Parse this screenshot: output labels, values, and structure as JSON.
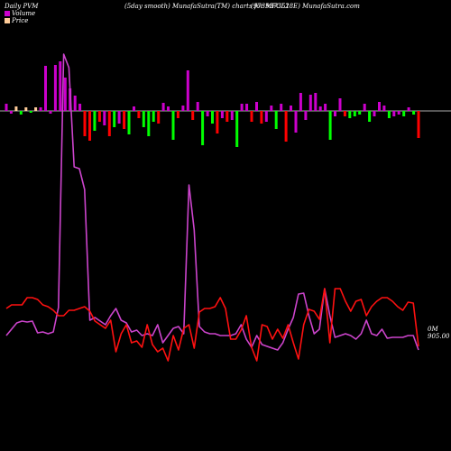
{
  "header": {
    "left": "Daily PVM",
    "middle": "(5day smooth) MunafaSutra(TM) charts for 937351",
    "right": "(973MFCL28E) MunafaSutra.com"
  },
  "legend": {
    "volume": "Volume",
    "price": "Price"
  },
  "end_labels": {
    "volume_label": "0M",
    "price_label": "905.00"
  },
  "colors": {
    "background": "#000000",
    "bar_up": "#ff0000",
    "bar_down": "#00ff00",
    "bar_volume": "#cc00cc",
    "bar_neutral": "#ffcc99",
    "volume_line": "#cc44cc",
    "price_line": "#ff1111",
    "zero_line": "#aaaaaa"
  },
  "chart_data": {
    "type": "bar+line",
    "title": "Daily PVM",
    "bars": [
      {
        "dir": "volume",
        "v": 8
      },
      {
        "dir": "volume",
        "v": -3
      },
      {
        "dir": "neutral",
        "v": 5
      },
      {
        "dir": "down",
        "v": -4
      },
      {
        "dir": "neutral",
        "v": 4
      },
      {
        "dir": "down",
        "v": -2
      },
      {
        "dir": "neutral",
        "v": 4
      },
      {
        "dir": "volume",
        "v": 4
      },
      {
        "dir": "volume",
        "v": 50
      },
      {
        "dir": "volume",
        "v": -3
      },
      {
        "dir": "volume",
        "v": 51
      },
      {
        "dir": "volume",
        "v": 55
      },
      {
        "dir": "volume",
        "v": 37
      },
      {
        "dir": "volume",
        "v": 25
      },
      {
        "dir": "volume",
        "v": 17
      },
      {
        "dir": "volume",
        "v": 8
      },
      {
        "dir": "up",
        "v": -28
      },
      {
        "dir": "up",
        "v": -33
      },
      {
        "dir": "down",
        "v": -22
      },
      {
        "dir": "up",
        "v": -12
      },
      {
        "dir": "volume",
        "v": -16
      },
      {
        "dir": "up",
        "v": -28
      },
      {
        "dir": "down",
        "v": -18
      },
      {
        "dir": "volume",
        "v": -14
      },
      {
        "dir": "up",
        "v": -20
      },
      {
        "dir": "down",
        "v": -26
      },
      {
        "dir": "volume",
        "v": 5
      },
      {
        "dir": "up",
        "v": -8
      },
      {
        "dir": "down",
        "v": -18
      },
      {
        "dir": "down",
        "v": -28
      },
      {
        "dir": "down",
        "v": -12
      },
      {
        "dir": "up",
        "v": -14
      },
      {
        "dir": "volume",
        "v": 9
      },
      {
        "dir": "volume",
        "v": 5
      },
      {
        "dir": "down",
        "v": -32
      },
      {
        "dir": "up",
        "v": -8
      },
      {
        "dir": "volume",
        "v": 6
      },
      {
        "dir": "volume",
        "v": 45
      },
      {
        "dir": "up",
        "v": -10
      },
      {
        "dir": "volume",
        "v": 10
      },
      {
        "dir": "down",
        "v": -38
      },
      {
        "dir": "volume",
        "v": -6
      },
      {
        "dir": "down",
        "v": -14
      },
      {
        "dir": "up",
        "v": -25
      },
      {
        "dir": "volume",
        "v": -8
      },
      {
        "dir": "up",
        "v": -12
      },
      {
        "dir": "volume",
        "v": -10
      },
      {
        "dir": "down",
        "v": -40
      },
      {
        "dir": "volume",
        "v": 8
      },
      {
        "dir": "volume",
        "v": 8
      },
      {
        "dir": "up",
        "v": -12
      },
      {
        "dir": "volume",
        "v": 10
      },
      {
        "dir": "up",
        "v": -14
      },
      {
        "dir": "volume",
        "v": -12
      },
      {
        "dir": "volume",
        "v": 6
      },
      {
        "dir": "down",
        "v": -20
      },
      {
        "dir": "volume",
        "v": 8
      },
      {
        "dir": "up",
        "v": -34
      },
      {
        "dir": "volume",
        "v": 6
      },
      {
        "dir": "volume",
        "v": -24
      },
      {
        "dir": "volume",
        "v": 20
      },
      {
        "dir": "volume",
        "v": -10
      },
      {
        "dir": "volume",
        "v": 18
      },
      {
        "dir": "volume",
        "v": 20
      },
      {
        "dir": "volume",
        "v": 5
      },
      {
        "dir": "volume",
        "v": 8
      },
      {
        "dir": "down",
        "v": -32
      },
      {
        "dir": "volume",
        "v": -6
      },
      {
        "dir": "volume",
        "v": 14
      },
      {
        "dir": "up",
        "v": -6
      },
      {
        "dir": "down",
        "v": -8
      },
      {
        "dir": "down",
        "v": -6
      },
      {
        "dir": "down",
        "v": -4
      },
      {
        "dir": "volume",
        "v": 8
      },
      {
        "dir": "down",
        "v": -12
      },
      {
        "dir": "volume",
        "v": -6
      },
      {
        "dir": "volume",
        "v": 10
      },
      {
        "dir": "volume",
        "v": 6
      },
      {
        "dir": "down",
        "v": -8
      },
      {
        "dir": "volume",
        "v": -6
      },
      {
        "dir": "volume",
        "v": -4
      },
      {
        "dir": "down",
        "v": -6
      },
      {
        "dir": "volume",
        "v": 4
      },
      {
        "dir": "down",
        "v": -4
      },
      {
        "dir": "up",
        "v": -30
      }
    ],
    "volume_line": [
      372,
      365,
      358,
      356,
      357,
      356,
      369,
      368,
      370,
      368,
      341,
      60,
      75,
      185,
      187,
      210,
      355,
      352,
      356,
      360,
      350,
      342,
      355,
      358,
      368,
      366,
      372,
      370,
      372,
      360,
      380,
      372,
      364,
      362,
      370,
      205,
      255,
      362,
      368,
      370,
      370,
      372,
      372,
      372,
      370,
      360,
      376,
      385,
      372,
      382,
      384,
      386,
      388,
      380,
      365,
      352,
      326,
      325,
      350,
      370,
      365,
      320,
      350,
      374,
      372,
      370,
      372,
      376,
      370,
      355,
      370,
      372,
      365,
      375,
      374,
      374,
      374,
      372,
      372,
      388
    ],
    "price_line": [
      342,
      338,
      338,
      338,
      330,
      330,
      332,
      338,
      340,
      344,
      350,
      350,
      344,
      344,
      342,
      340,
      345,
      356,
      360,
      364,
      355,
      390,
      370,
      360,
      380,
      378,
      385,
      360,
      382,
      390,
      386,
      400,
      372,
      388,
      364,
      360,
      386,
      346,
      342,
      342,
      340,
      330,
      342,
      376,
      376,
      366,
      350,
      385,
      400,
      360,
      362,
      376,
      365,
      375,
      360,
      380,
      398,
      360,
      343,
      345,
      354,
      320,
      380,
      320,
      320,
      334,
      345,
      334,
      332,
      350,
      340,
      334,
      330,
      330,
      334,
      340,
      344,
      335,
      336,
      384
    ]
  }
}
